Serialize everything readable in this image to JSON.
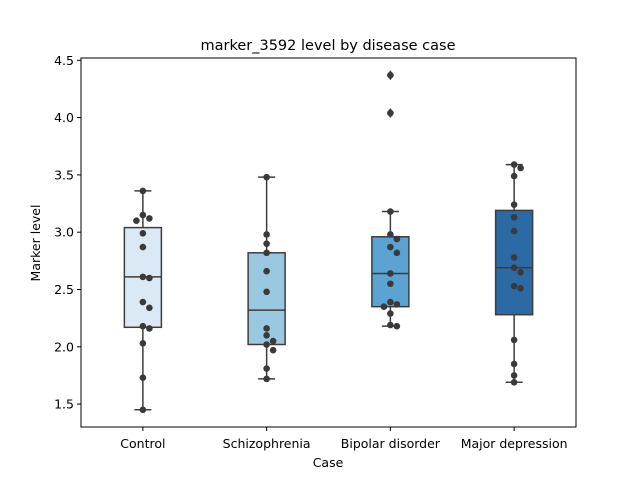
{
  "chart_data": {
    "type": "box",
    "title": "marker_3592 level by disease case",
    "xlabel": "Case",
    "ylabel": "Marker level",
    "ylim": [
      1.3,
      4.52
    ],
    "yticks": [
      "1.5",
      "2.0",
      "2.5",
      "3.0",
      "3.5",
      "4.0",
      "4.5"
    ],
    "categories": [
      "Control",
      "Schizophrenia",
      "Bipolar disorder",
      "Major depression"
    ],
    "colors": [
      "#dbe9f6",
      "#9ac8e0",
      "#5ba3d0",
      "#2b6ba5"
    ],
    "boxes": [
      {
        "q1": 2.17,
        "median": 2.61,
        "q3": 3.04,
        "whisker_low": 1.45,
        "whisker_high": 3.36,
        "outliers": []
      },
      {
        "q1": 2.02,
        "median": 2.32,
        "q3": 2.82,
        "whisker_low": 1.72,
        "whisker_high": 3.48,
        "outliers": []
      },
      {
        "q1": 2.35,
        "median": 2.64,
        "q3": 2.96,
        "whisker_low": 2.18,
        "whisker_high": 3.18,
        "outliers": [
          4.04,
          4.37
        ]
      },
      {
        "q1": 2.28,
        "median": 2.69,
        "q3": 3.19,
        "whisker_low": 1.69,
        "whisker_high": 3.59,
        "outliers": []
      }
    ],
    "points": [
      [
        3.36,
        3.15,
        3.12,
        3.1,
        2.99,
        2.87,
        2.61,
        2.6,
        2.39,
        2.34,
        2.18,
        2.16,
        2.03,
        1.73,
        1.45
      ],
      [
        3.48,
        2.98,
        2.9,
        2.82,
        2.66,
        2.48,
        2.16,
        2.1,
        2.05,
        2.02,
        1.97,
        1.81,
        1.72
      ],
      [
        4.37,
        4.04,
        3.18,
        2.98,
        2.94,
        2.87,
        2.82,
        2.64,
        2.55,
        2.39,
        2.37,
        2.35,
        2.29,
        2.19,
        2.18
      ],
      [
        3.59,
        3.56,
        3.49,
        3.24,
        3.13,
        3.01,
        2.78,
        2.69,
        2.65,
        2.53,
        2.51,
        2.06,
        1.85,
        1.75,
        1.69
      ]
    ],
    "grid": false,
    "legend": "none"
  }
}
